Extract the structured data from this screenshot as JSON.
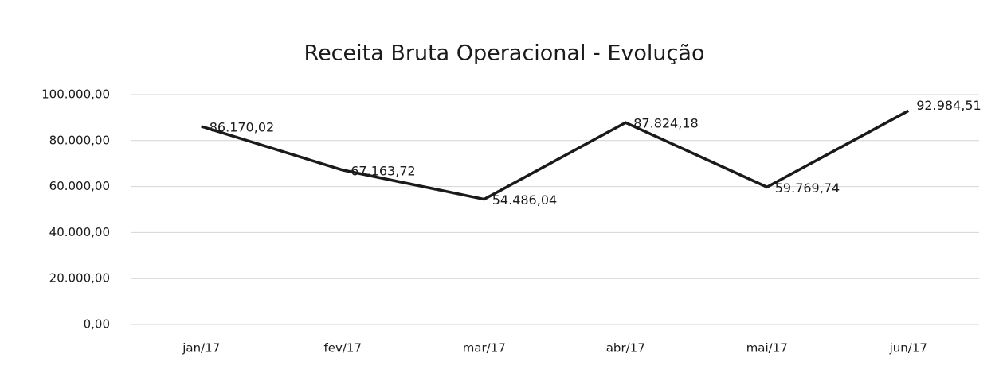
{
  "chart_data": {
    "type": "line",
    "title": "Receita Bruta Operacional - Evolução",
    "categories": [
      "jan/17",
      "fev/17",
      "mar/17",
      "abr/17",
      "mai/17",
      "jun/17"
    ],
    "values": [
      86170.02,
      67163.72,
      54486.04,
      87824.18,
      59769.74,
      92984.51
    ],
    "value_labels": [
      "86.170,02",
      "67.163,72",
      "54.486,04",
      "87.824,18",
      "59.769,74",
      "92.984,51"
    ],
    "color": "#1a1a1a",
    "ylim": [
      0,
      100000
    ],
    "yticks": [
      {
        "value": 0,
        "label": "0,00"
      },
      {
        "value": 20000,
        "label": "20.000,00"
      },
      {
        "value": 40000,
        "label": "40.000,00"
      },
      {
        "value": 60000,
        "label": "60.000,00"
      },
      {
        "value": 80000,
        "label": "80.000,00"
      },
      {
        "value": 100000,
        "label": "100.000,00"
      }
    ],
    "grid": true
  }
}
